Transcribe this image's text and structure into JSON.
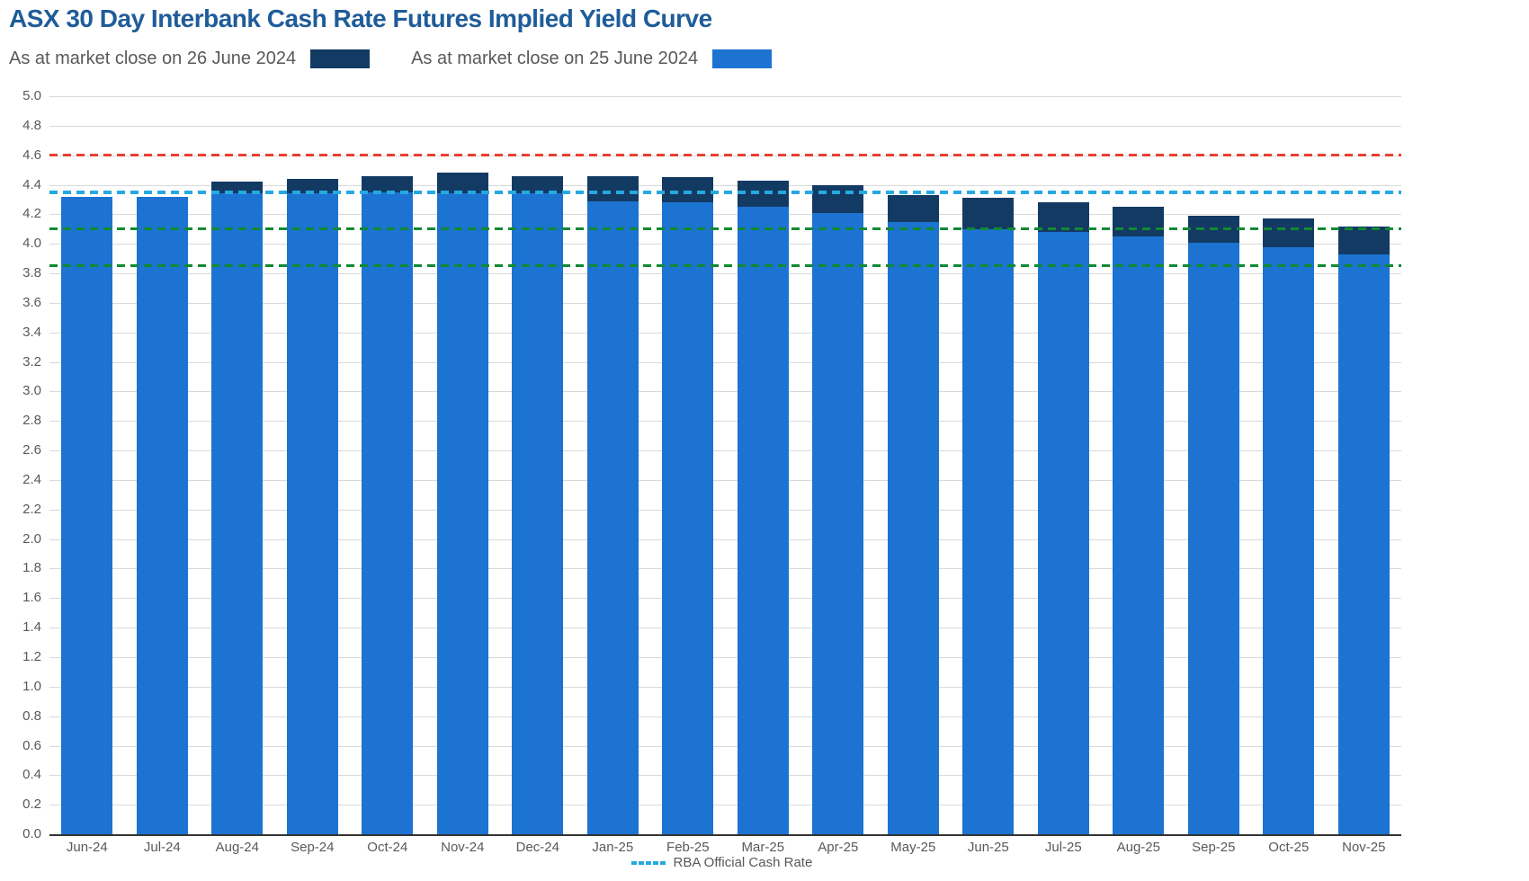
{
  "title": "ASX 30 Day Interbank Cash Rate Futures Implied Yield Curve",
  "legend": {
    "series_26jun": "As at market close on 26 June 2024",
    "series_25jun": "As at market close on 25 June 2024",
    "rba_line": "RBA Official Cash Rate"
  },
  "colors": {
    "title": "#1f5c99",
    "series_26jun": "#133a63",
    "series_25jun": "#1c73d1",
    "rba_line": "#25a9e0",
    "upper_ref_line": "#e8402f",
    "lower_ref_lines": "#0f8a32",
    "gridline": "#d9d9d9",
    "axis_text": "#595959"
  },
  "chart_data": {
    "type": "bar",
    "title": "ASX 30 Day Interbank Cash Rate Futures Implied Yield Curve",
    "categories": [
      "Jun-24",
      "Jul-24",
      "Aug-24",
      "Sep-24",
      "Oct-24",
      "Nov-24",
      "Dec-24",
      "Jan-25",
      "Feb-25",
      "Mar-25",
      "Apr-25",
      "May-25",
      "Jun-25",
      "Jul-25",
      "Aug-25",
      "Sep-25",
      "Oct-25",
      "Nov-25"
    ],
    "series": [
      {
        "name": "As at market close on 26 June 2024",
        "color": "#133a63",
        "values": [
          4.32,
          4.32,
          4.42,
          4.44,
          4.46,
          4.48,
          4.46,
          4.46,
          4.45,
          4.43,
          4.4,
          4.33,
          4.31,
          4.28,
          4.25,
          4.19,
          4.17,
          4.12
        ]
      },
      {
        "name": "As at market close on 25 June 2024",
        "color": "#1c73d1",
        "values": [
          4.32,
          4.32,
          4.34,
          4.34,
          4.35,
          4.34,
          4.34,
          4.29,
          4.28,
          4.25,
          4.21,
          4.15,
          4.1,
          4.08,
          4.05,
          4.01,
          3.98,
          3.93
        ]
      }
    ],
    "reference_lines": [
      {
        "label": "",
        "value": 4.6,
        "color": "#e8402f",
        "style": "dashed",
        "thickness": 3
      },
      {
        "label": "RBA Official Cash Rate",
        "value": 4.35,
        "color": "#25a9e0",
        "style": "dashed",
        "thickness": 4
      },
      {
        "label": "",
        "value": 4.1,
        "color": "#0f8a32",
        "style": "dashed",
        "thickness": 3
      },
      {
        "label": "",
        "value": 3.85,
        "color": "#0f8a32",
        "style": "dashed",
        "thickness": 3
      }
    ],
    "xlabel": "",
    "ylabel": "",
    "ylim": [
      0.0,
      5.0
    ],
    "ytick_step": 0.2,
    "grid": true,
    "bar_mode": "overlaid",
    "legend_position": "top"
  }
}
